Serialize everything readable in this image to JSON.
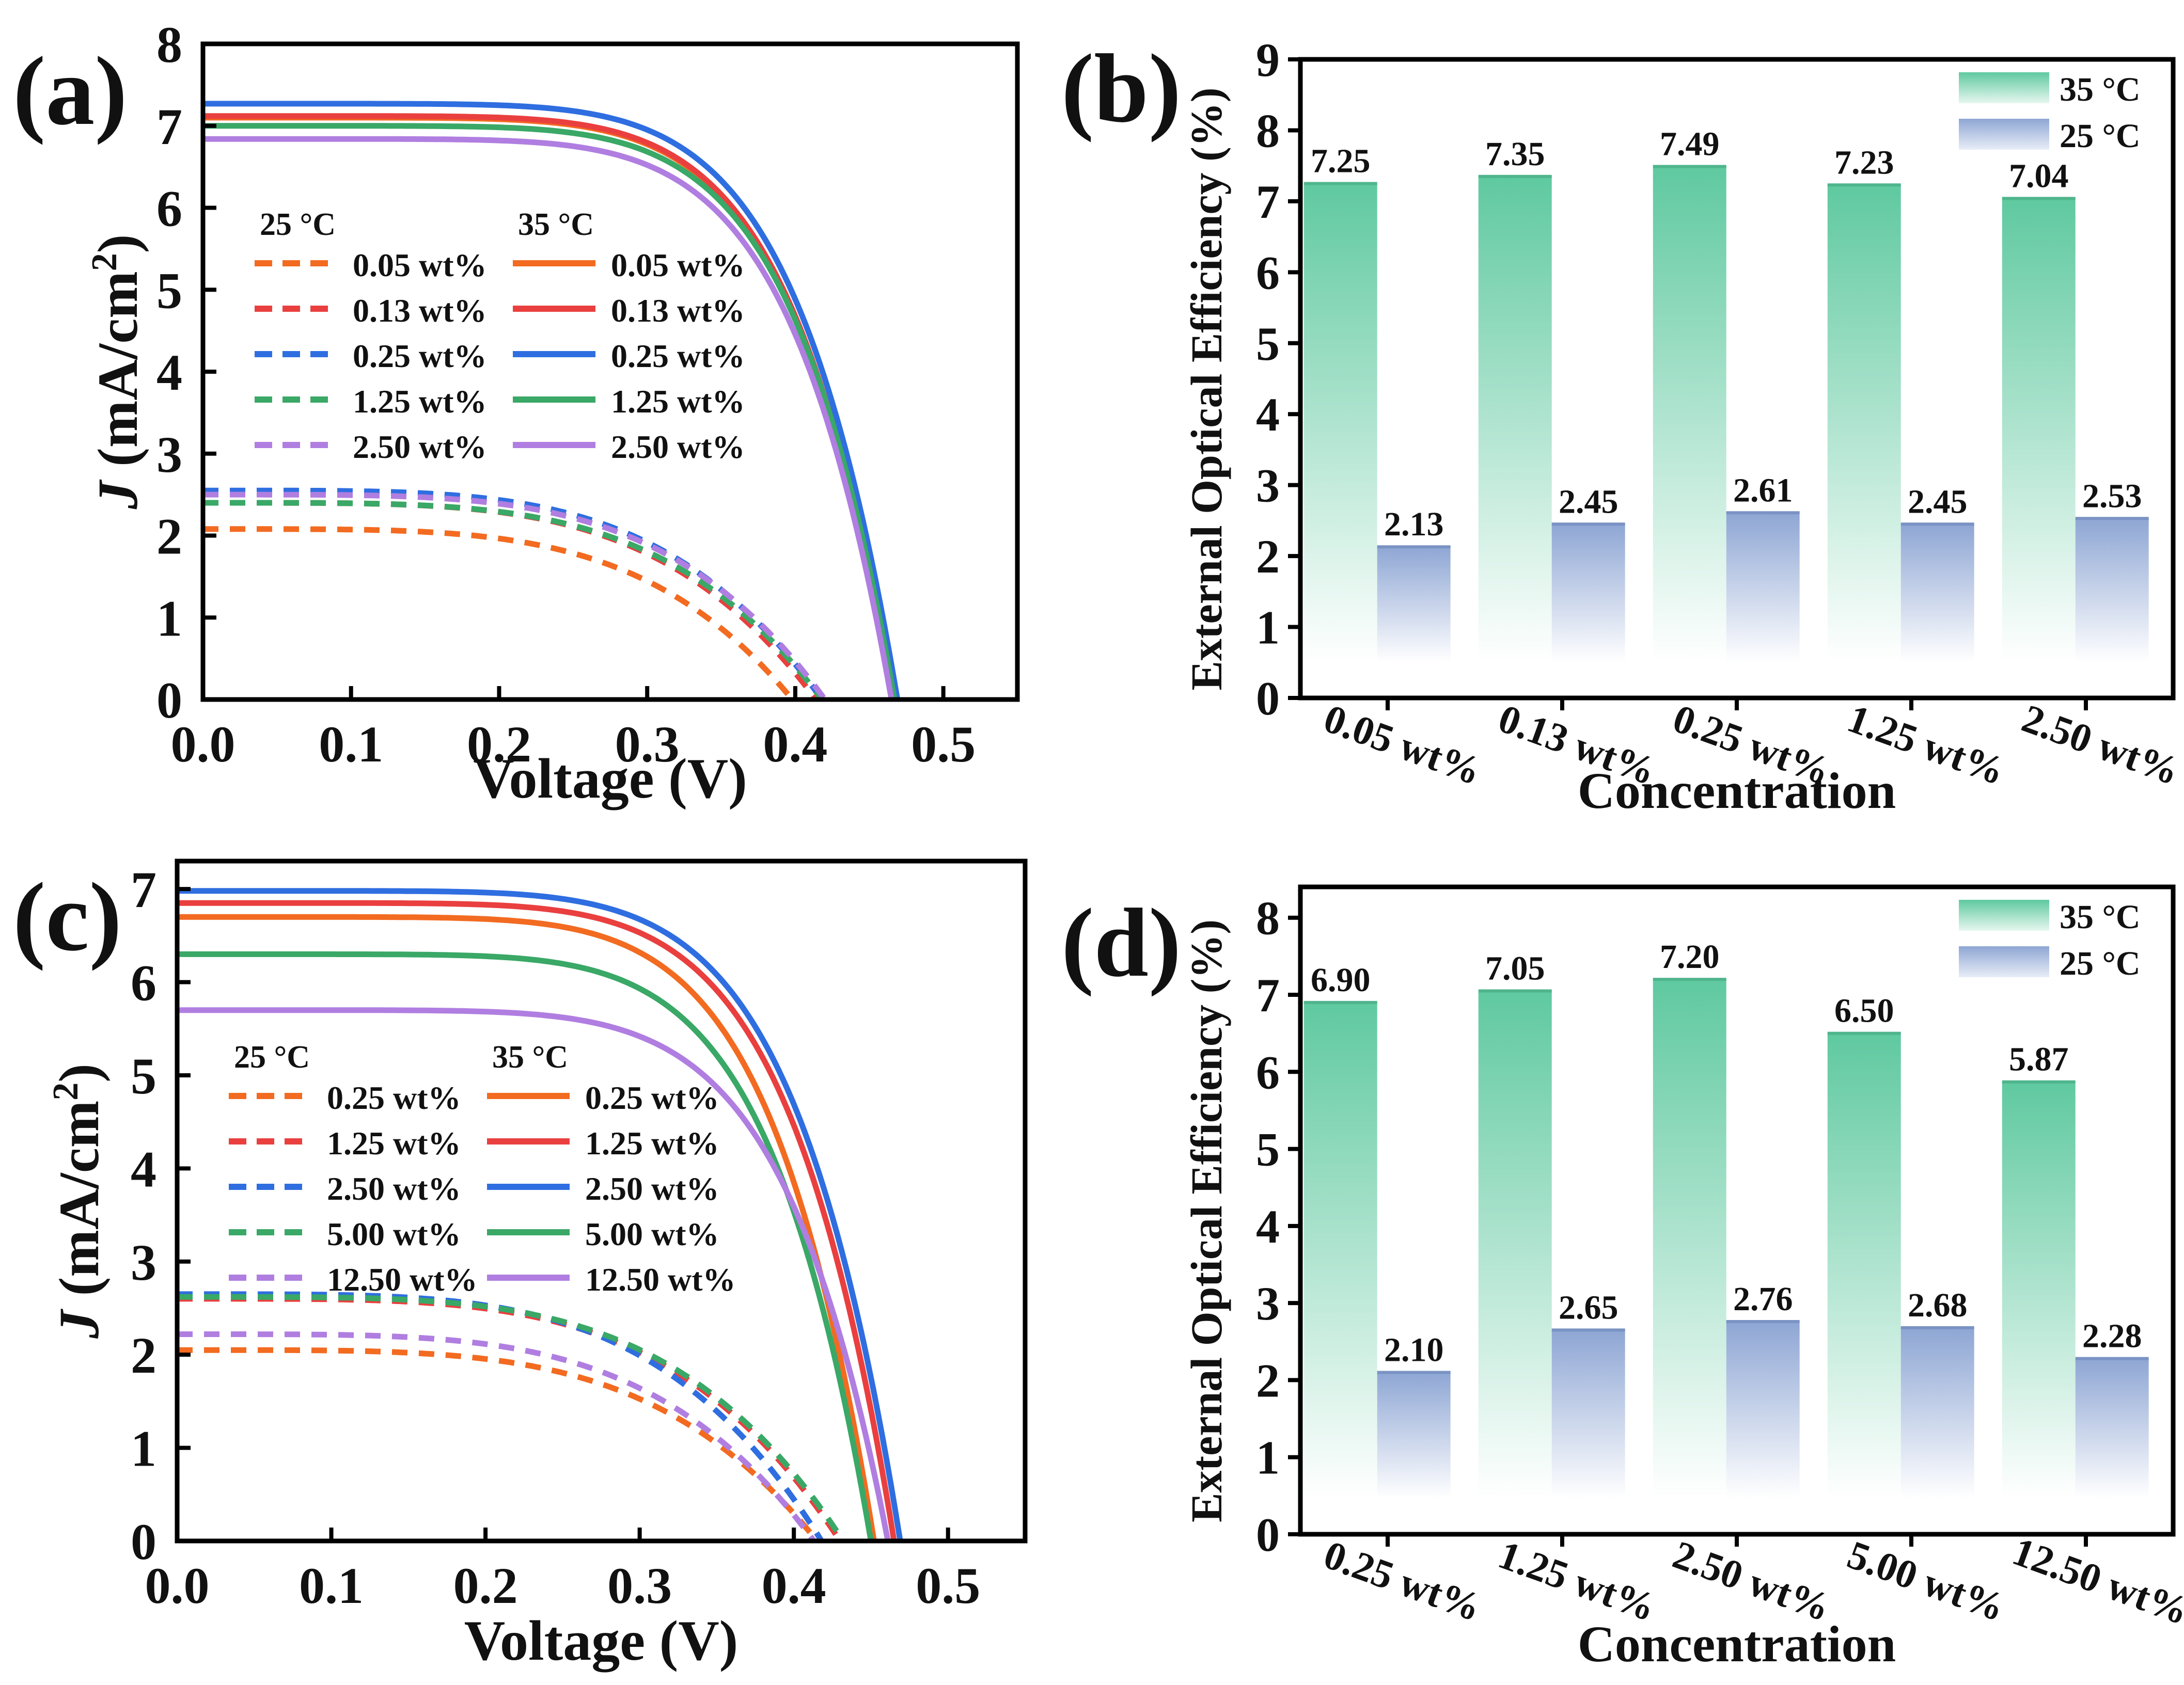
{
  "colors": {
    "orange": "#f26b21",
    "red": "#ea3f3f",
    "blue": "#2f6ee0",
    "green": "#3aa866",
    "purple": "#b07ee0",
    "bar35_top": "#5fc9a0",
    "bar25_top": "#8ea6d4"
  },
  "chart_data": [
    {
      "panel_label": "(a)",
      "type": "line",
      "xlabel": "Voltage (V)",
      "ylabel_italic": "J",
      "ylabel_rest": " (mA/cm",
      "ylabel_sup": "2",
      "ylabel_close": ")",
      "xlim": [
        0,
        0.55
      ],
      "ylim": [
        0,
        8
      ],
      "xticks": [
        0.0,
        0.1,
        0.2,
        0.3,
        0.4,
        0.5
      ],
      "xtick_labels": [
        "0.0",
        "0.1",
        "0.2",
        "0.3",
        "0.4",
        "0.5"
      ],
      "yticks": [
        0,
        1,
        2,
        3,
        4,
        5,
        6,
        7,
        8
      ],
      "ytick_labels": [
        "0",
        "1",
        "2",
        "3",
        "4",
        "5",
        "6",
        "7",
        "8"
      ],
      "legend_header_25": "25 °C",
      "legend_header_35": "35 °C",
      "series": [
        {
          "name": "0.05 wt%",
          "temp": "25",
          "color": "orange",
          "jsc": 2.08,
          "voc": 0.398
        },
        {
          "name": "0.13 wt%",
          "temp": "25",
          "color": "red",
          "jsc": 2.4,
          "voc": 0.414
        },
        {
          "name": "0.25 wt%",
          "temp": "25",
          "color": "blue",
          "jsc": 2.55,
          "voc": 0.418
        },
        {
          "name": "1.25 wt%",
          "temp": "25",
          "color": "green",
          "jsc": 2.4,
          "voc": 0.418
        },
        {
          "name": "2.50 wt%",
          "temp": "25",
          "color": "purple",
          "jsc": 2.5,
          "voc": 0.42
        },
        {
          "name": "0.05 wt%",
          "temp": "35",
          "color": "orange",
          "jsc": 7.1,
          "voc": 0.466
        },
        {
          "name": "0.13 wt%",
          "temp": "35",
          "color": "red",
          "jsc": 7.12,
          "voc": 0.466
        },
        {
          "name": "0.25 wt%",
          "temp": "35",
          "color": "blue",
          "jsc": 7.27,
          "voc": 0.469
        },
        {
          "name": "1.25 wt%",
          "temp": "35",
          "color": "green",
          "jsc": 7.0,
          "voc": 0.467
        },
        {
          "name": "2.50 wt%",
          "temp": "35",
          "color": "purple",
          "jsc": 6.84,
          "voc": 0.465
        }
      ]
    },
    {
      "panel_label": "(b)",
      "type": "bar",
      "xlabel": "Concentration",
      "ylabel": "External Optical Efficiency (%)",
      "ylim": [
        0,
        9
      ],
      "yticks": [
        0,
        1,
        2,
        3,
        4,
        5,
        6,
        7,
        8,
        9
      ],
      "ytick_labels": [
        "0",
        "1",
        "2",
        "3",
        "4",
        "5",
        "6",
        "7",
        "8",
        "9"
      ],
      "categories": [
        "0.05 wt%",
        "0.13 wt%",
        "0.25 wt%",
        "1.25 wt%",
        "2.50 wt%"
      ],
      "series": [
        {
          "name": "35 °C",
          "values": [
            7.25,
            7.35,
            7.49,
            7.23,
            7.04
          ],
          "value_labels": [
            "7.25",
            "7.35",
            "7.49",
            "7.23",
            "7.04"
          ]
        },
        {
          "name": "25 °C",
          "values": [
            2.13,
            2.45,
            2.61,
            2.45,
            2.53
          ],
          "value_labels": [
            "2.13",
            "2.45",
            "2.61",
            "2.45",
            "2.53"
          ]
        }
      ],
      "legend_position": "top-right"
    },
    {
      "panel_label": "(c)",
      "type": "line",
      "xlabel": "Voltage (V)",
      "ylabel_italic": "J",
      "ylabel_rest": " (mA/cm",
      "ylabel_sup": "2",
      "ylabel_close": ")",
      "xlim": [
        0,
        0.55
      ],
      "ylim": [
        0,
        7.3
      ],
      "xticks": [
        0.0,
        0.1,
        0.2,
        0.3,
        0.4,
        0.5
      ],
      "xtick_labels": [
        "0.0",
        "0.1",
        "0.2",
        "0.3",
        "0.4",
        "0.5"
      ],
      "yticks": [
        0,
        1,
        2,
        3,
        4,
        5,
        6,
        7
      ],
      "ytick_labels": [
        "0",
        "1",
        "2",
        "3",
        "4",
        "5",
        "6",
        "7"
      ],
      "legend_header_25": "25 °C",
      "legend_header_35": "35 °C",
      "series": [
        {
          "name": "0.25 wt%",
          "temp": "25",
          "color": "orange",
          "jsc": 2.05,
          "voc": 0.415
        },
        {
          "name": "1.25 wt%",
          "temp": "25",
          "color": "red",
          "jsc": 2.6,
          "voc": 0.43
        },
        {
          "name": "2.50 wt%",
          "temp": "25",
          "color": "blue",
          "jsc": 2.65,
          "voc": 0.418
        },
        {
          "name": "5.00 wt%",
          "temp": "25",
          "color": "green",
          "jsc": 2.62,
          "voc": 0.432
        },
        {
          "name": "12.50 wt%",
          "temp": "25",
          "color": "purple",
          "jsc": 2.22,
          "voc": 0.413
        },
        {
          "name": "0.25 wt%",
          "temp": "35",
          "color": "orange",
          "jsc": 6.7,
          "voc": 0.452
        },
        {
          "name": "1.25 wt%",
          "temp": "35",
          "color": "red",
          "jsc": 6.85,
          "voc": 0.465
        },
        {
          "name": "2.50 wt%",
          "temp": "35",
          "color": "blue",
          "jsc": 6.98,
          "voc": 0.469
        },
        {
          "name": "5.00 wt%",
          "temp": "35",
          "color": "green",
          "jsc": 6.3,
          "voc": 0.45
        },
        {
          "name": "12.50 wt%",
          "temp": "35",
          "color": "purple",
          "jsc": 5.7,
          "voc": 0.461
        }
      ]
    },
    {
      "panel_label": "(d)",
      "type": "bar",
      "xlabel": "Concentration",
      "ylabel": "External Optical Efficiency (%)",
      "ylim": [
        0,
        8.4
      ],
      "yticks": [
        0,
        1,
        2,
        3,
        4,
        5,
        6,
        7,
        8
      ],
      "ytick_labels": [
        "0",
        "1",
        "2",
        "3",
        "4",
        "5",
        "6",
        "7",
        "8"
      ],
      "categories": [
        "0.25 wt%",
        "1.25 wt%",
        "2.50 wt%",
        "5.00 wt%",
        "12.50 wt%"
      ],
      "series": [
        {
          "name": "35 °C",
          "values": [
            6.9,
            7.05,
            7.2,
            6.5,
            5.87
          ],
          "value_labels": [
            "6.90",
            "7.05",
            "7.20",
            "6.50",
            "5.87"
          ]
        },
        {
          "name": "25 °C",
          "values": [
            2.1,
            2.65,
            2.76,
            2.68,
            2.28
          ],
          "value_labels": [
            "2.10",
            "2.65",
            "2.76",
            "2.68",
            "2.28"
          ]
        }
      ],
      "legend_position": "top-right"
    }
  ]
}
